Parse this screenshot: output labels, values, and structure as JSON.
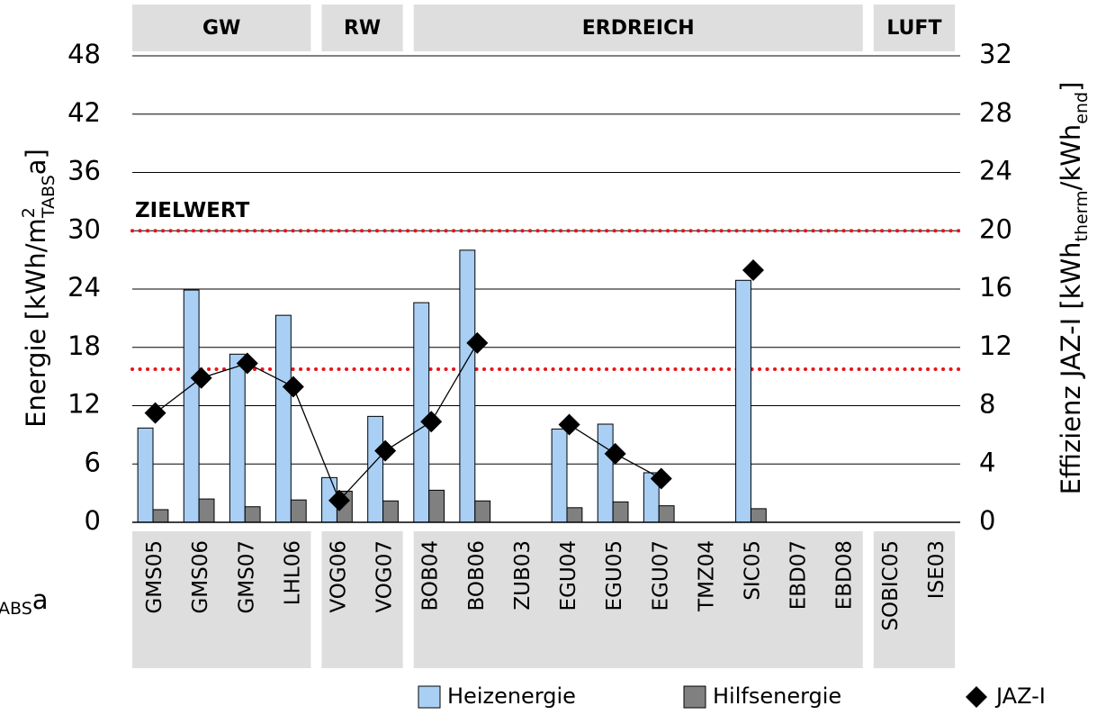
{
  "chart_data": {
    "type": "bar",
    "ylabel": [
      "Energie [kWh/m",
      "2",
      "TABS",
      "a]"
    ],
    "y2label": [
      "Effizienz JAZ-I [kWh",
      "therm",
      "/kWh",
      "end",
      "]"
    ],
    "fragment": [
      "ABS",
      "a"
    ],
    "categories": [
      "GMS05",
      "GMS06",
      "GMS07",
      "LHL06",
      "VOG06",
      "VOG07",
      "BOB04",
      "BOB06",
      "ZUB03",
      "EGU04",
      "EGU05",
      "EGU07",
      "TMZ04",
      "SIC05",
      "EBD07",
      "EBD08",
      "SOBIC05",
      "ISE03"
    ],
    "groups": [
      {
        "label": "GW",
        "count": 4
      },
      {
        "label": "RW",
        "count": 2
      },
      {
        "label": "ERDREICH",
        "count": 10
      },
      {
        "label": "LUFT",
        "count": 2
      }
    ],
    "series": [
      {
        "name": "Heizenergie",
        "color": "#a9cff5",
        "values": [
          9.7,
          23.9,
          17.3,
          21.3,
          4.6,
          10.9,
          22.6,
          28.0,
          null,
          9.6,
          10.1,
          5.1,
          null,
          24.9,
          null,
          null,
          null,
          null
        ]
      },
      {
        "name": "Hilfsenergie",
        "color": "#808080",
        "values": [
          1.3,
          2.4,
          1.6,
          2.3,
          3.2,
          2.2,
          3.3,
          2.2,
          null,
          1.5,
          2.1,
          1.7,
          null,
          1.4,
          null,
          null,
          null,
          null
        ]
      },
      {
        "name": "JAZ-I",
        "type": "line",
        "axis": "y2",
        "color": "#000000",
        "values": [
          7.5,
          9.9,
          10.9,
          9.3,
          1.5,
          4.9,
          6.9,
          12.3,
          null,
          6.7,
          4.7,
          3.0,
          null,
          17.3,
          null,
          null,
          null,
          null
        ]
      }
    ],
    "reference_lines": [
      {
        "label": "ZIELWERT",
        "value": 30,
        "color": "#e8141b"
      },
      {
        "value": 10.5,
        "axis": "y2",
        "color": "#e8141b"
      }
    ],
    "ylim": [
      0,
      48
    ],
    "yticks": [
      0,
      6,
      12,
      18,
      24,
      30,
      36,
      42,
      48
    ],
    "y2lim": [
      0,
      32
    ],
    "y2ticks": [
      0,
      4,
      8,
      12,
      16,
      20,
      24,
      28,
      32
    ],
    "grid": true
  }
}
